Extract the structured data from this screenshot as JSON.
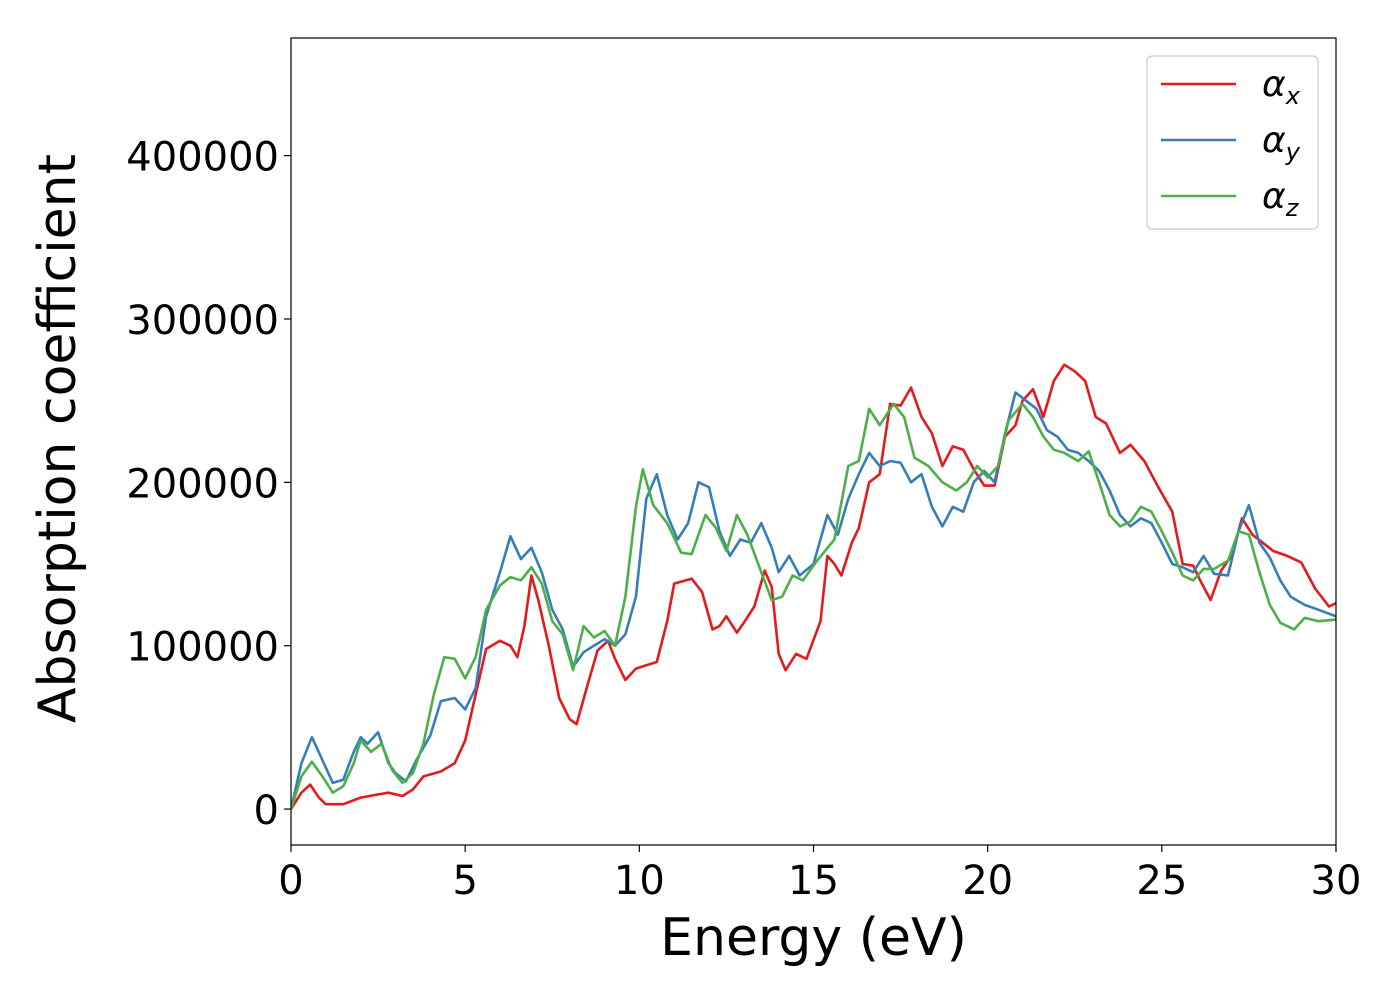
{
  "chart_data": {
    "type": "line",
    "title": "",
    "xlabel": "Energy (eV)",
    "ylabel": "Absorption coefficient",
    "xlim": [
      0,
      30
    ],
    "ylim": [
      -22000,
      472000
    ],
    "xticks": [
      0,
      5,
      10,
      15,
      20,
      25,
      30
    ],
    "xtick_labels": [
      "0",
      "5",
      "10",
      "15",
      "20",
      "25",
      "30"
    ],
    "yticks": [
      0,
      100000,
      200000,
      300000,
      400000
    ],
    "ytick_labels": [
      "0",
      "100000",
      "200000",
      "300000",
      "400000"
    ],
    "grid": false,
    "legend_position": "top-right",
    "series": [
      {
        "name": "αx",
        "legend_base": "α",
        "legend_sub": "x",
        "color": "#e41a1c",
        "points": [
          [
            0,
            0
          ],
          [
            0.3,
            10000
          ],
          [
            0.55,
            15000
          ],
          [
            0.8,
            7000
          ],
          [
            1.0,
            3000
          ],
          [
            1.5,
            3000
          ],
          [
            2.0,
            7000
          ],
          [
            2.5,
            9000
          ],
          [
            2.8,
            10000
          ],
          [
            3.2,
            8000
          ],
          [
            3.5,
            12000
          ],
          [
            3.8,
            20000
          ],
          [
            4.3,
            23000
          ],
          [
            4.7,
            28000
          ],
          [
            5.0,
            42000
          ],
          [
            5.3,
            70000
          ],
          [
            5.6,
            98000
          ],
          [
            6.0,
            103000
          ],
          [
            6.3,
            100000
          ],
          [
            6.5,
            93000
          ],
          [
            6.7,
            112000
          ],
          [
            6.9,
            143000
          ],
          [
            7.1,
            128000
          ],
          [
            7.4,
            100000
          ],
          [
            7.7,
            68000
          ],
          [
            8.0,
            55000
          ],
          [
            8.2,
            52000
          ],
          [
            8.5,
            75000
          ],
          [
            8.8,
            97000
          ],
          [
            9.1,
            103000
          ],
          [
            9.3,
            92000
          ],
          [
            9.6,
            79000
          ],
          [
            9.9,
            86000
          ],
          [
            10.2,
            88000
          ],
          [
            10.5,
            90000
          ],
          [
            10.8,
            115000
          ],
          [
            11.0,
            138000
          ],
          [
            11.5,
            141000
          ],
          [
            11.8,
            133000
          ],
          [
            12.1,
            110000
          ],
          [
            12.3,
            112000
          ],
          [
            12.5,
            118000
          ],
          [
            12.8,
            108000
          ],
          [
            13.0,
            114000
          ],
          [
            13.3,
            124000
          ],
          [
            13.6,
            146000
          ],
          [
            13.8,
            136000
          ],
          [
            14.0,
            95000
          ],
          [
            14.2,
            85000
          ],
          [
            14.5,
            95000
          ],
          [
            14.8,
            92000
          ],
          [
            15.2,
            115000
          ],
          [
            15.4,
            155000
          ],
          [
            15.6,
            150000
          ],
          [
            15.8,
            143000
          ],
          [
            16.1,
            163000
          ],
          [
            16.3,
            172000
          ],
          [
            16.6,
            200000
          ],
          [
            16.9,
            205000
          ],
          [
            17.2,
            248000
          ],
          [
            17.5,
            247000
          ],
          [
            17.8,
            258000
          ],
          [
            18.1,
            240000
          ],
          [
            18.4,
            230000
          ],
          [
            18.7,
            210000
          ],
          [
            19.0,
            222000
          ],
          [
            19.3,
            220000
          ],
          [
            19.6,
            208000
          ],
          [
            19.9,
            198000
          ],
          [
            20.2,
            198000
          ],
          [
            20.5,
            228000
          ],
          [
            20.8,
            235000
          ],
          [
            21.0,
            250000
          ],
          [
            21.3,
            257000
          ],
          [
            21.6,
            240000
          ],
          [
            21.9,
            262000
          ],
          [
            22.2,
            272000
          ],
          [
            22.5,
            268000
          ],
          [
            22.8,
            262000
          ],
          [
            23.1,
            240000
          ],
          [
            23.4,
            236000
          ],
          [
            23.8,
            218000
          ],
          [
            24.1,
            223000
          ],
          [
            24.5,
            213000
          ],
          [
            24.9,
            197000
          ],
          [
            25.3,
            182000
          ],
          [
            25.6,
            150000
          ],
          [
            25.9,
            149000
          ],
          [
            26.1,
            140000
          ],
          [
            26.4,
            128000
          ],
          [
            26.7,
            146000
          ],
          [
            27.0,
            155000
          ],
          [
            27.3,
            178000
          ],
          [
            27.6,
            168000
          ],
          [
            27.9,
            163000
          ],
          [
            28.2,
            158000
          ],
          [
            28.6,
            155000
          ],
          [
            29.0,
            151000
          ],
          [
            29.4,
            135000
          ],
          [
            29.8,
            124000
          ],
          [
            30.0,
            126000
          ]
        ]
      },
      {
        "name": "αy",
        "legend_base": "α",
        "legend_sub": "y",
        "color": "#377eb8",
        "points": [
          [
            0,
            0
          ],
          [
            0.3,
            28000
          ],
          [
            0.6,
            44000
          ],
          [
            0.9,
            30000
          ],
          [
            1.2,
            16000
          ],
          [
            1.5,
            18000
          ],
          [
            1.8,
            35000
          ],
          [
            2.0,
            44000
          ],
          [
            2.2,
            40000
          ],
          [
            2.5,
            47000
          ],
          [
            2.8,
            28000
          ],
          [
            3.0,
            22000
          ],
          [
            3.3,
            17000
          ],
          [
            3.6,
            30000
          ],
          [
            4.0,
            45000
          ],
          [
            4.3,
            66000
          ],
          [
            4.7,
            68000
          ],
          [
            5.0,
            61000
          ],
          [
            5.3,
            74000
          ],
          [
            5.6,
            118000
          ],
          [
            6.0,
            145000
          ],
          [
            6.3,
            167000
          ],
          [
            6.6,
            153000
          ],
          [
            6.9,
            160000
          ],
          [
            7.2,
            145000
          ],
          [
            7.5,
            122000
          ],
          [
            7.8,
            110000
          ],
          [
            8.1,
            87000
          ],
          [
            8.4,
            96000
          ],
          [
            8.7,
            100000
          ],
          [
            9.0,
            104000
          ],
          [
            9.3,
            100000
          ],
          [
            9.6,
            107000
          ],
          [
            9.9,
            130000
          ],
          [
            10.2,
            190000
          ],
          [
            10.5,
            205000
          ],
          [
            10.8,
            180000
          ],
          [
            11.1,
            165000
          ],
          [
            11.4,
            175000
          ],
          [
            11.7,
            200000
          ],
          [
            12.0,
            197000
          ],
          [
            12.3,
            170000
          ],
          [
            12.6,
            155000
          ],
          [
            12.9,
            165000
          ],
          [
            13.2,
            163000
          ],
          [
            13.5,
            175000
          ],
          [
            13.8,
            160000
          ],
          [
            14.0,
            145000
          ],
          [
            14.3,
            155000
          ],
          [
            14.6,
            143000
          ],
          [
            15.0,
            150000
          ],
          [
            15.4,
            180000
          ],
          [
            15.7,
            168000
          ],
          [
            16.0,
            190000
          ],
          [
            16.3,
            205000
          ],
          [
            16.6,
            218000
          ],
          [
            16.9,
            210000
          ],
          [
            17.2,
            213000
          ],
          [
            17.5,
            212000
          ],
          [
            17.8,
            200000
          ],
          [
            18.1,
            205000
          ],
          [
            18.4,
            185000
          ],
          [
            18.7,
            173000
          ],
          [
            19.0,
            185000
          ],
          [
            19.3,
            182000
          ],
          [
            19.6,
            200000
          ],
          [
            19.9,
            207000
          ],
          [
            20.2,
            200000
          ],
          [
            20.5,
            230000
          ],
          [
            20.8,
            255000
          ],
          [
            21.1,
            250000
          ],
          [
            21.4,
            245000
          ],
          [
            21.7,
            232000
          ],
          [
            22.0,
            228000
          ],
          [
            22.3,
            220000
          ],
          [
            22.6,
            218000
          ],
          [
            22.9,
            213000
          ],
          [
            23.2,
            207000
          ],
          [
            23.5,
            195000
          ],
          [
            23.8,
            180000
          ],
          [
            24.1,
            173000
          ],
          [
            24.4,
            178000
          ],
          [
            24.7,
            175000
          ],
          [
            25.0,
            163000
          ],
          [
            25.3,
            150000
          ],
          [
            25.6,
            148000
          ],
          [
            25.9,
            145000
          ],
          [
            26.2,
            155000
          ],
          [
            26.5,
            144000
          ],
          [
            26.9,
            143000
          ],
          [
            27.2,
            170000
          ],
          [
            27.5,
            186000
          ],
          [
            27.8,
            163000
          ],
          [
            28.1,
            154000
          ],
          [
            28.4,
            140000
          ],
          [
            28.7,
            130000
          ],
          [
            29.1,
            125000
          ],
          [
            29.5,
            122000
          ],
          [
            30.0,
            118000
          ]
        ]
      },
      {
        "name": "αz",
        "legend_base": "α",
        "legend_sub": "z",
        "color": "#4daf4a",
        "points": [
          [
            0,
            0
          ],
          [
            0.3,
            20000
          ],
          [
            0.6,
            29000
          ],
          [
            0.9,
            20000
          ],
          [
            1.2,
            10000
          ],
          [
            1.5,
            14000
          ],
          [
            1.8,
            28000
          ],
          [
            2.0,
            42000
          ],
          [
            2.3,
            35000
          ],
          [
            2.6,
            40000
          ],
          [
            2.9,
            24000
          ],
          [
            3.2,
            16000
          ],
          [
            3.5,
            22000
          ],
          [
            3.8,
            40000
          ],
          [
            4.1,
            70000
          ],
          [
            4.4,
            93000
          ],
          [
            4.7,
            92000
          ],
          [
            5.0,
            80000
          ],
          [
            5.3,
            93000
          ],
          [
            5.6,
            122000
          ],
          [
            6.0,
            137000
          ],
          [
            6.3,
            142000
          ],
          [
            6.6,
            140000
          ],
          [
            6.9,
            148000
          ],
          [
            7.2,
            138000
          ],
          [
            7.5,
            115000
          ],
          [
            7.8,
            107000
          ],
          [
            8.1,
            85000
          ],
          [
            8.4,
            112000
          ],
          [
            8.7,
            105000
          ],
          [
            9.0,
            109000
          ],
          [
            9.3,
            100000
          ],
          [
            9.6,
            130000
          ],
          [
            9.9,
            185000
          ],
          [
            10.1,
            208000
          ],
          [
            10.4,
            186000
          ],
          [
            10.8,
            175000
          ],
          [
            11.2,
            157000
          ],
          [
            11.5,
            156000
          ],
          [
            11.9,
            180000
          ],
          [
            12.2,
            172000
          ],
          [
            12.5,
            158000
          ],
          [
            12.8,
            180000
          ],
          [
            13.1,
            168000
          ],
          [
            13.5,
            145000
          ],
          [
            13.8,
            128000
          ],
          [
            14.1,
            130000
          ],
          [
            14.4,
            143000
          ],
          [
            14.7,
            140000
          ],
          [
            15.1,
            152000
          ],
          [
            15.6,
            165000
          ],
          [
            16.0,
            210000
          ],
          [
            16.3,
            213000
          ],
          [
            16.6,
            245000
          ],
          [
            16.9,
            235000
          ],
          [
            17.3,
            248000
          ],
          [
            17.6,
            240000
          ],
          [
            17.9,
            215000
          ],
          [
            18.3,
            210000
          ],
          [
            18.7,
            200000
          ],
          [
            19.1,
            195000
          ],
          [
            19.4,
            200000
          ],
          [
            19.7,
            210000
          ],
          [
            20.0,
            203000
          ],
          [
            20.3,
            210000
          ],
          [
            20.6,
            238000
          ],
          [
            21.0,
            248000
          ],
          [
            21.3,
            240000
          ],
          [
            21.6,
            228000
          ],
          [
            21.9,
            220000
          ],
          [
            22.2,
            218000
          ],
          [
            22.6,
            213000
          ],
          [
            22.9,
            219000
          ],
          [
            23.2,
            200000
          ],
          [
            23.5,
            180000
          ],
          [
            23.8,
            173000
          ],
          [
            24.1,
            176000
          ],
          [
            24.4,
            185000
          ],
          [
            24.7,
            182000
          ],
          [
            25.0,
            170000
          ],
          [
            25.3,
            157000
          ],
          [
            25.6,
            143000
          ],
          [
            25.9,
            140000
          ],
          [
            26.2,
            147000
          ],
          [
            26.5,
            147000
          ],
          [
            26.9,
            152000
          ],
          [
            27.2,
            170000
          ],
          [
            27.5,
            168000
          ],
          [
            27.8,
            145000
          ],
          [
            28.1,
            125000
          ],
          [
            28.4,
            114000
          ],
          [
            28.8,
            110000
          ],
          [
            29.1,
            117000
          ],
          [
            29.5,
            115000
          ],
          [
            30.0,
            116000
          ]
        ]
      }
    ]
  }
}
